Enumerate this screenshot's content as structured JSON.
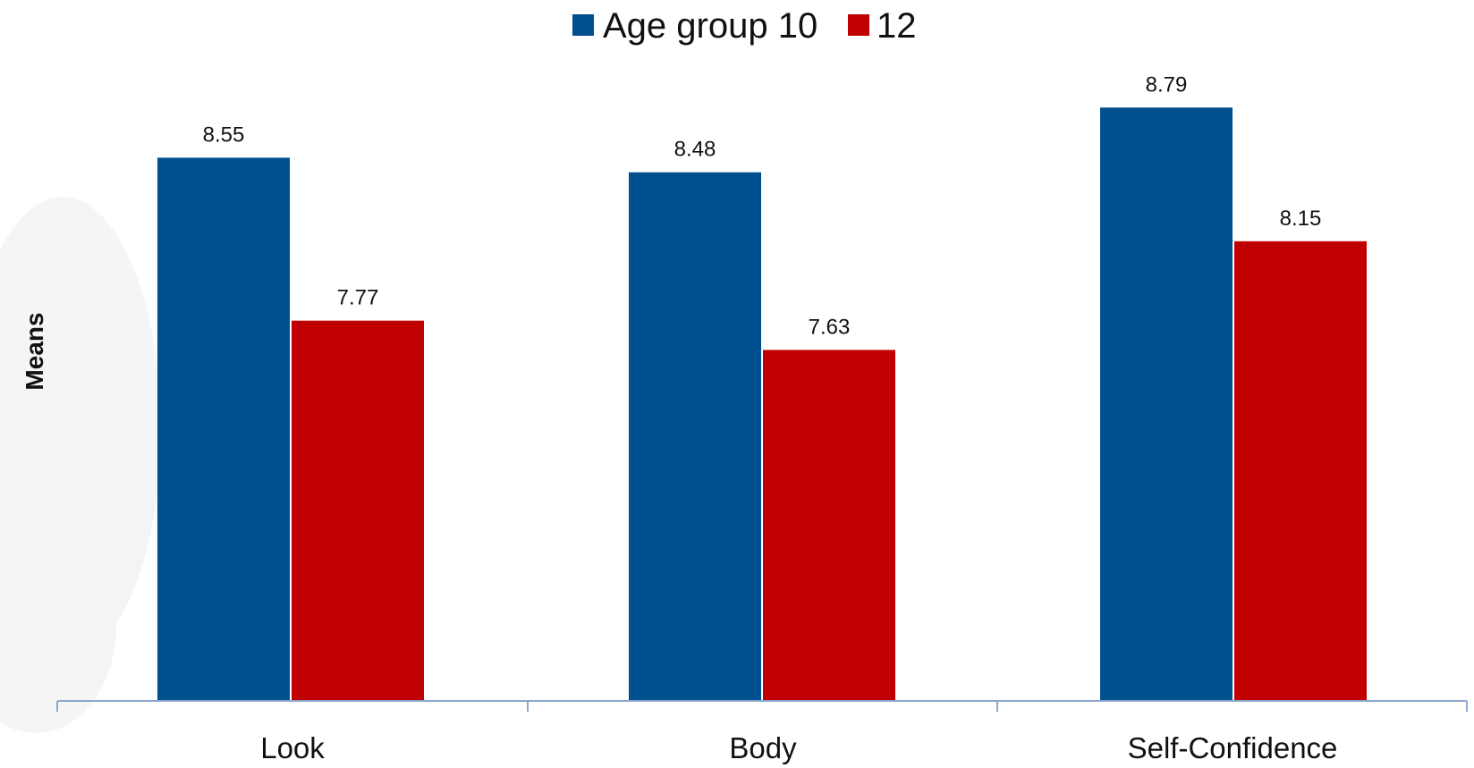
{
  "chart_data": {
    "type": "bar",
    "categories": [
      "Look",
      "Body",
      "Self-Confidence"
    ],
    "series": [
      {
        "name": "Age group 10",
        "values": [
          8.55,
          8.48,
          8.79
        ],
        "color": "#004F8F"
      },
      {
        "name": "12",
        "values": [
          7.77,
          7.63,
          8.15
        ],
        "color": "#C00000"
      }
    ],
    "ylabel": "Means",
    "legend_position": "top-center",
    "grid": false
  }
}
